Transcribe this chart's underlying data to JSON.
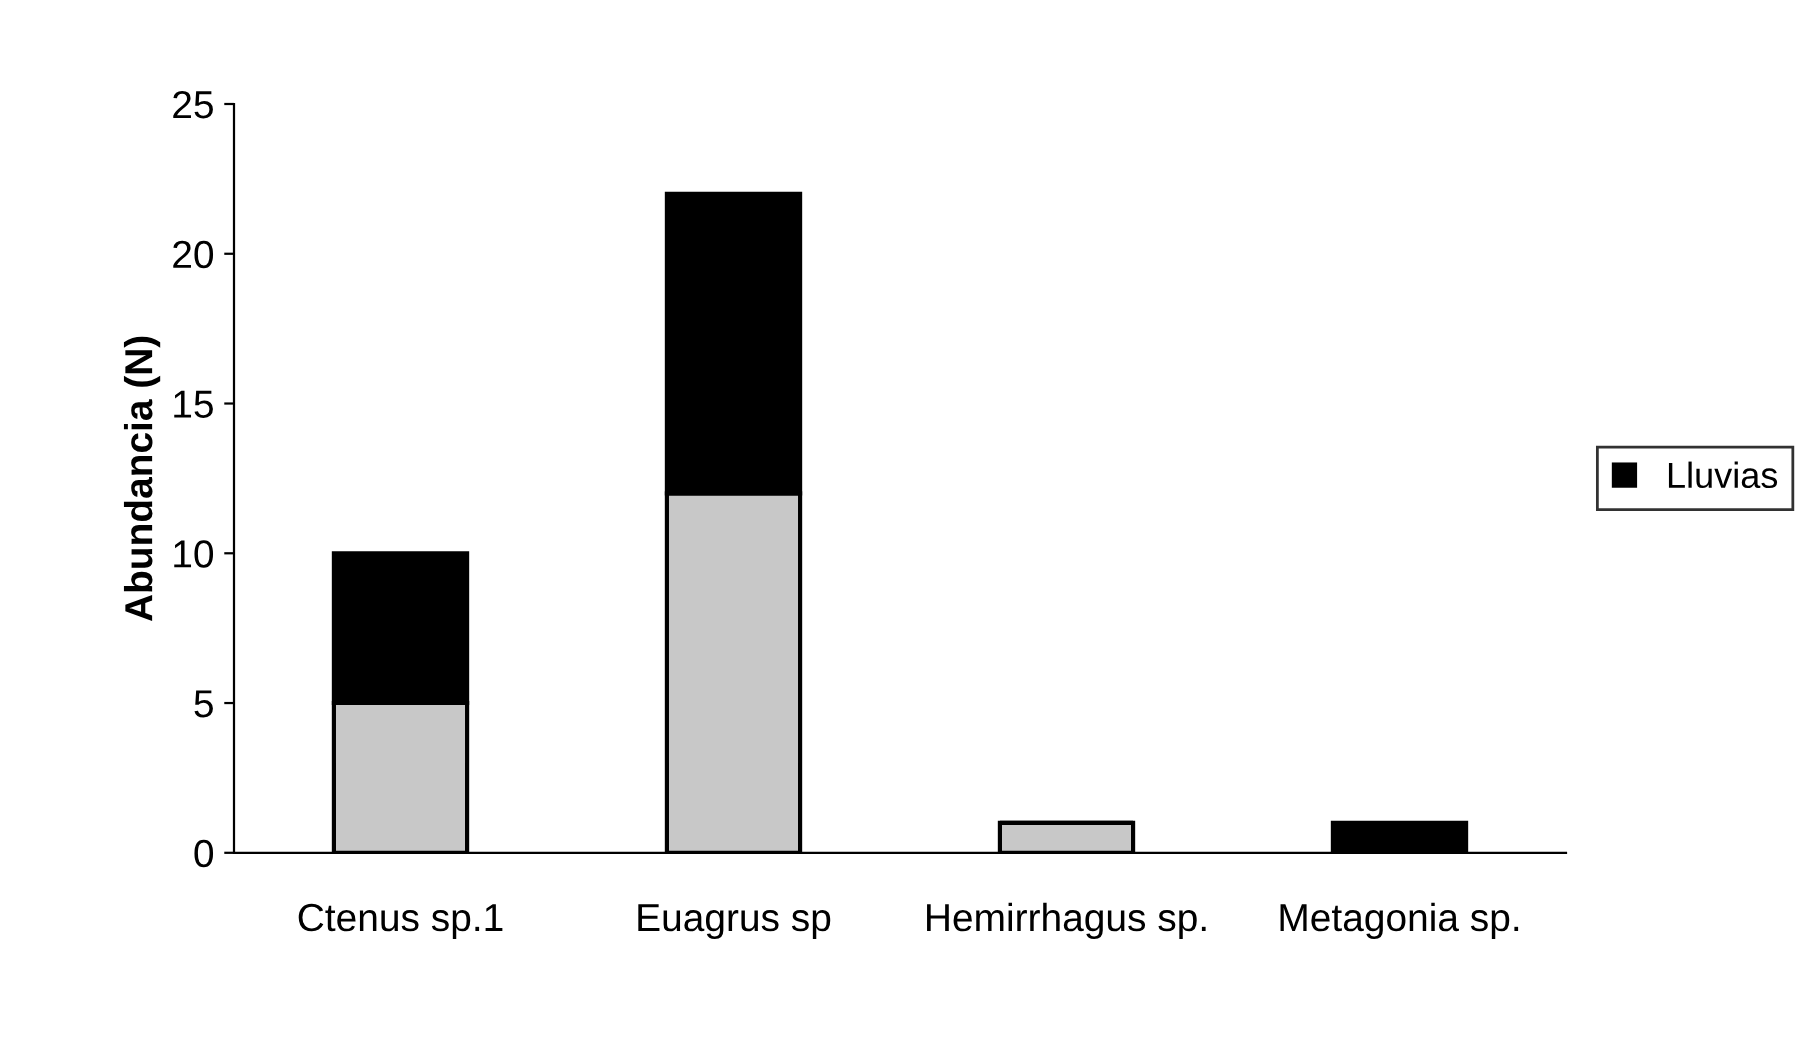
{
  "chart_data": {
    "type": "bar",
    "stacked": true,
    "ylabel": "Abundancia (N)",
    "categories": [
      "Ctenus sp.1",
      "Euagrus sp",
      "Hemirrhagus sp.",
      "Metagonia sp."
    ],
    "series": [
      {
        "color": "#c8c8c8",
        "values": [
          5,
          12,
          1,
          0
        ]
      },
      {
        "name": "Lluvias",
        "color": "#000000",
        "values": [
          5,
          10,
          0,
          1
        ]
      }
    ],
    "ylim": [
      0,
      25
    ],
    "yticks": [
      0,
      5,
      10,
      15,
      20,
      25
    ],
    "grid": false,
    "legend": "right"
  }
}
